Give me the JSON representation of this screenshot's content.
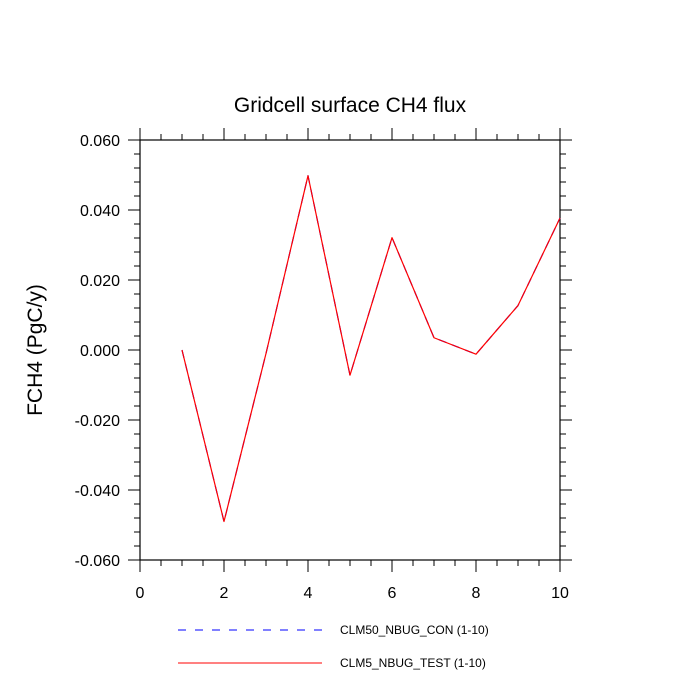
{
  "chart_data": {
    "type": "line",
    "title": "Gridcell surface CH4 flux",
    "xlabel": "",
    "ylabel": "FCH4  (PgC/y)",
    "xlim": [
      0,
      10
    ],
    "ylim": [
      -0.06,
      0.06
    ],
    "x_ticks": [
      0,
      2,
      4,
      6,
      8,
      10
    ],
    "x_tick_labels": [
      "0",
      "2",
      "4",
      "6",
      "8",
      "10"
    ],
    "y_ticks": [
      -0.06,
      -0.04,
      -0.02,
      0.0,
      0.02,
      0.04,
      0.06
    ],
    "y_tick_labels": [
      "-0.060",
      "-0.040",
      "-0.020",
      "0.000",
      "0.020",
      "0.040",
      "0.060"
    ],
    "legend_position": "bottom",
    "grid": false,
    "x": [
      1,
      2,
      3,
      4,
      5,
      6,
      7,
      8,
      9,
      10
    ],
    "series": [
      {
        "name": "CLM50_NBUG_CON (1-10)",
        "color": "#0000ff",
        "style": "dashed",
        "values": [
          0.0,
          -0.049,
          -0.001,
          0.0498,
          -0.0072,
          0.0321,
          0.0035,
          -0.0012,
          0.0127,
          0.0377
        ]
      },
      {
        "name": "CLM5_NBUG_TEST (1-10)",
        "color": "#ff0000",
        "style": "solid",
        "values": [
          0.0,
          -0.049,
          -0.001,
          0.0498,
          -0.0072,
          0.0321,
          0.0035,
          -0.0012,
          0.0127,
          0.0377
        ]
      }
    ]
  }
}
